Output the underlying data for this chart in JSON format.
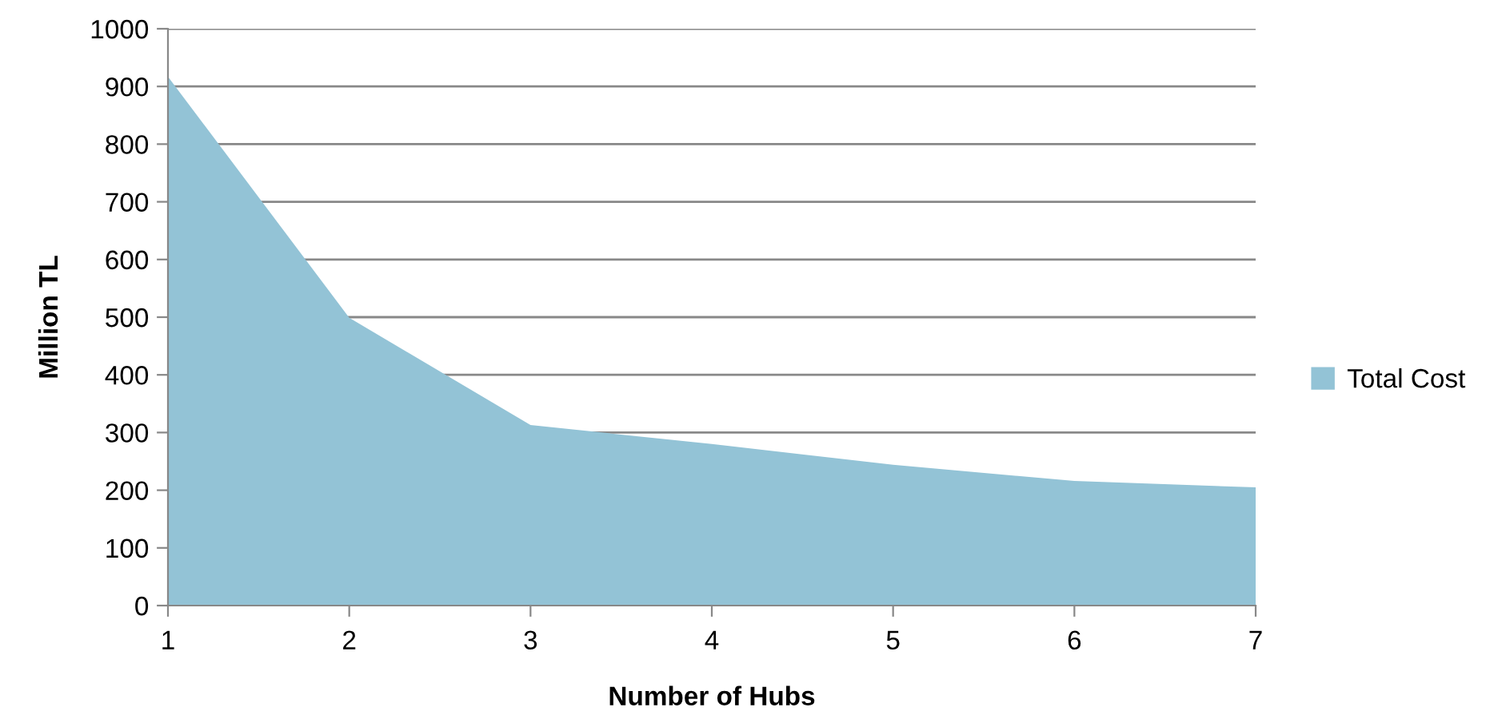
{
  "chart_data": {
    "type": "area",
    "xlabel": "Number of Hubs",
    "ylabel": "Million TL",
    "x": [
      1,
      2,
      3,
      4,
      5,
      6,
      7
    ],
    "series": [
      {
        "name": "Total Cost",
        "color": "#93c3d6",
        "values": [
          917,
          499,
          313,
          280,
          244,
          216,
          205
        ]
      }
    ],
    "xlim": [
      1,
      7
    ],
    "xticks": [
      1,
      2,
      3,
      4,
      5,
      6,
      7
    ],
    "ylim": [
      0,
      1000
    ],
    "yticks": [
      0,
      100,
      200,
      300,
      400,
      500,
      600,
      700,
      800,
      900,
      1000
    ],
    "grid": "y",
    "legend": "right"
  }
}
